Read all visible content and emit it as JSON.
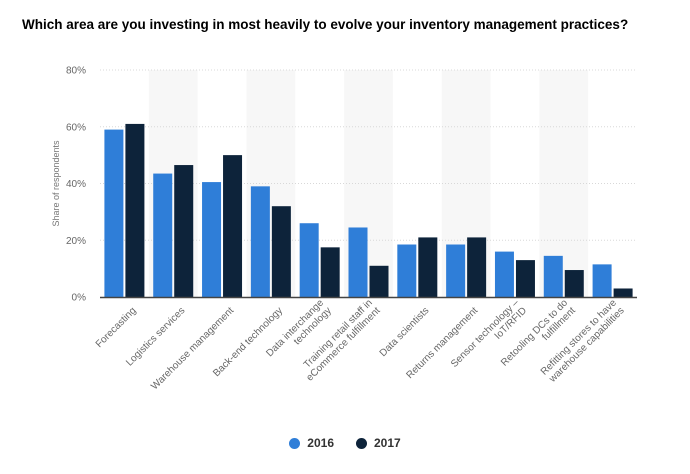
{
  "title": "Which area are you investing in most heavily to evolve your inventory management practices?",
  "chart_data": {
    "type": "bar",
    "ylabel": "Share of respondents",
    "xlabel": "",
    "ylim": [
      0,
      80
    ],
    "yticks": [
      "0%",
      "20%",
      "40%",
      "60%",
      "80%"
    ],
    "categories": [
      [
        "Forecasting"
      ],
      [
        "Logistics services"
      ],
      [
        "Warehouse management"
      ],
      [
        "Back-end technology"
      ],
      [
        "Data interchange",
        "technology"
      ],
      [
        "Training retail staff in",
        "eCommerce fulfillment"
      ],
      [
        "Data scientists"
      ],
      [
        "Returns management"
      ],
      [
        "Sensor technology –",
        "IoT/RFID"
      ],
      [
        "Retooling DCs to do",
        "fulfillment"
      ],
      [
        "Refitting stores to have",
        "warehouse capabilities"
      ]
    ],
    "series": [
      {
        "name": "2016",
        "color": "#2f7ed8",
        "values": [
          59,
          43.5,
          40.5,
          39,
          26,
          24.5,
          18.5,
          18.5,
          16,
          14.5,
          11.5
        ]
      },
      {
        "name": "2017",
        "color": "#0d233a",
        "values": [
          61,
          46.5,
          50,
          32,
          17.5,
          11,
          21,
          21,
          13,
          9.5,
          3
        ]
      }
    ]
  },
  "legend": {
    "items": [
      {
        "label": "2016",
        "color": "#2f7ed8"
      },
      {
        "label": "2017",
        "color": "#0d233a"
      }
    ]
  }
}
